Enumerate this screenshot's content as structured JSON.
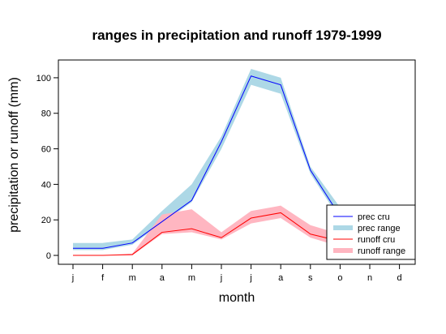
{
  "chart_data": {
    "type": "area",
    "title": "ranges in precipitation and runoff 1979-1999",
    "xlabel": "month",
    "ylabel": "precipitation or runoff (mm)",
    "categories": [
      "j",
      "f",
      "m",
      "a",
      "m",
      "j",
      "j",
      "a",
      "s",
      "o",
      "n",
      "d"
    ],
    "ylim": [
      -5,
      110
    ],
    "yticks": [
      0,
      20,
      40,
      60,
      80,
      100
    ],
    "grid": false,
    "legend_position": "bottom-right",
    "series": [
      {
        "name": "prec range",
        "kind": "band",
        "color": "#add8e6",
        "lower": [
          3,
          3,
          6,
          18,
          30,
          60,
          96,
          91,
          46,
          20,
          null,
          null
        ],
        "upper": [
          7,
          7,
          9,
          25,
          40,
          67,
          105,
          100,
          50,
          27,
          null,
          null
        ]
      },
      {
        "name": "runoff range",
        "kind": "band",
        "color": "#ffb6c1",
        "lower": [
          0,
          0,
          0,
          12,
          13,
          9,
          18,
          21,
          10,
          5,
          null,
          null
        ],
        "upper": [
          0,
          0,
          1,
          23,
          26,
          13,
          25,
          28,
          17,
          12,
          null,
          null
        ]
      },
      {
        "name": "prec cru",
        "kind": "line",
        "color": "#0000ff",
        "values": [
          4,
          4,
          7,
          19,
          31,
          64,
          101,
          96,
          48,
          22,
          null,
          null
        ]
      },
      {
        "name": "runoff cru",
        "kind": "line",
        "color": "#ff0000",
        "values": [
          0,
          0,
          0.5,
          13,
          15,
          10,
          21,
          24,
          12,
          8,
          null,
          null
        ]
      }
    ],
    "legend": [
      "prec cru",
      "prec range",
      "runoff cru",
      "runoff range"
    ]
  }
}
